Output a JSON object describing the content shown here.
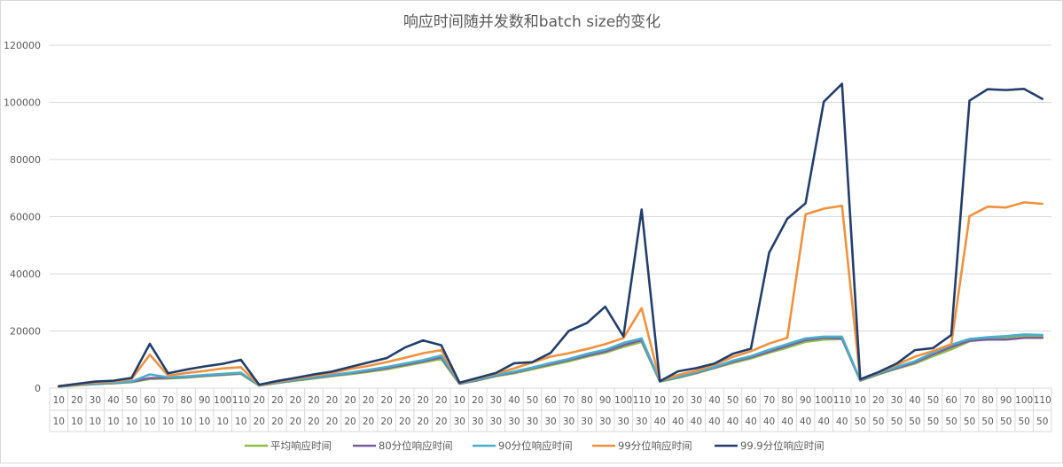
{
  "chart_data": {
    "type": "line",
    "title": "响应时间随并发数和batch size的变化",
    "xlabel": "",
    "ylabel": "",
    "ylim": [
      0,
      120000
    ],
    "yticks": [
      0,
      20000,
      40000,
      60000,
      80000,
      100000,
      120000
    ],
    "grid": true,
    "legend": "bottom",
    "x_concurrency": [
      "10",
      "20",
      "30",
      "40",
      "50",
      "60",
      "70",
      "80",
      "90",
      "100",
      "110",
      "20",
      "20",
      "20",
      "20",
      "20",
      "20",
      "20",
      "20",
      "20",
      "20",
      "20",
      "10",
      "20",
      "30",
      "40",
      "50",
      "60",
      "70",
      "80",
      "90",
      "100",
      "110",
      "10",
      "20",
      "30",
      "40",
      "50",
      "60",
      "70",
      "80",
      "90",
      "100",
      "110",
      "10",
      "20",
      "30",
      "40",
      "50",
      "60",
      "70",
      "80",
      "90",
      "100",
      "110"
    ],
    "x_batch": [
      "10",
      "10",
      "10",
      "10",
      "10",
      "10",
      "10",
      "10",
      "10",
      "10",
      "10",
      "20",
      "20",
      "20",
      "20",
      "20",
      "20",
      "20",
      "20",
      "20",
      "20",
      "20",
      "30",
      "30",
      "30",
      "30",
      "30",
      "30",
      "30",
      "30",
      "30",
      "30",
      "30",
      "40",
      "40",
      "40",
      "40",
      "40",
      "40",
      "40",
      "40",
      "40",
      "40",
      "40",
      "50",
      "50",
      "50",
      "50",
      "50",
      "50",
      "50",
      "50",
      "50",
      "50",
      "50"
    ],
    "series": [
      {
        "name": "平均响应时间",
        "color": "#8fbe44",
        "values": [
          500,
          1000,
          1400,
          1700,
          2100,
          3200,
          3400,
          3700,
          4200,
          4600,
          5000,
          900,
          1800,
          2600,
          3400,
          4200,
          4900,
          5700,
          6600,
          7800,
          9000,
          10200,
          1500,
          2700,
          4200,
          5200,
          6600,
          8000,
          9400,
          11000,
          12400,
          14400,
          16200,
          2300,
          3600,
          5200,
          7000,
          8800,
          10400,
          12400,
          14200,
          16200,
          17000,
          17200,
          2600,
          4800,
          6800,
          8600,
          11200,
          13600,
          16400,
          17200,
          17800,
          18400,
          18000
        ]
      },
      {
        "name": "80分位响应时间",
        "color": "#7c5ea0",
        "values": [
          550,
          1100,
          1500,
          1800,
          2200,
          3500,
          3600,
          3900,
          4400,
          4800,
          5200,
          950,
          1900,
          2800,
          3600,
          4400,
          5200,
          6000,
          7000,
          8200,
          9400,
          10800,
          1600,
          2800,
          4400,
          5500,
          7000,
          8400,
          9800,
          11400,
          12800,
          15000,
          16800,
          2400,
          3800,
          5400,
          7200,
          9200,
          10800,
          12800,
          14800,
          16800,
          17600,
          17400,
          2700,
          5000,
          7000,
          9000,
          11800,
          14400,
          16600,
          17000,
          17000,
          17600,
          17600
        ]
      },
      {
        "name": "90分位响应时间",
        "color": "#4aaecc",
        "values": [
          600,
          1150,
          1600,
          1900,
          2300,
          4800,
          3800,
          4100,
          4600,
          5000,
          5400,
          1000,
          2000,
          2900,
          3800,
          4600,
          5400,
          6400,
          7400,
          8600,
          9800,
          11400,
          1700,
          3000,
          4600,
          5800,
          7200,
          8800,
          10200,
          12000,
          13400,
          15800,
          17400,
          2500,
          3900,
          5600,
          7400,
          9600,
          11200,
          13400,
          15400,
          17400,
          18000,
          18000,
          2800,
          5200,
          7400,
          9400,
          12400,
          15200,
          17200,
          17800,
          18200,
          18800,
          18600
        ]
      },
      {
        "name": "99分位响应时间",
        "color": "#f0913d",
        "values": [
          650,
          1300,
          2000,
          2300,
          3200,
          11700,
          4400,
          5300,
          6000,
          6900,
          7300,
          1100,
          2200,
          3300,
          4400,
          5300,
          6700,
          7800,
          9100,
          10600,
          12200,
          13300,
          1800,
          3400,
          5100,
          6900,
          9000,
          11000,
          12200,
          13700,
          15400,
          17500,
          28000,
          2600,
          4600,
          6100,
          8200,
          10900,
          12900,
          15600,
          17600,
          60800,
          62800,
          63800,
          3000,
          5500,
          8200,
          11000,
          13000,
          15400,
          60200,
          63500,
          63200,
          65000,
          64500
        ]
      },
      {
        "name": "99.9分位响应时间",
        "color": "#233e6b",
        "values": [
          700,
          1500,
          2300,
          2600,
          3600,
          15500,
          5200,
          6500,
          7600,
          8500,
          9900,
          1200,
          2500,
          3600,
          4800,
          5800,
          7400,
          9000,
          10500,
          14200,
          16700,
          15000,
          1900,
          3600,
          5300,
          8700,
          9100,
          12300,
          20000,
          22800,
          28500,
          18100,
          62500,
          2400,
          5900,
          7000,
          8600,
          12000,
          13800,
          47400,
          59300,
          64700,
          100200,
          106500,
          3100,
          5600,
          8600,
          13300,
          14000,
          18600,
          100600,
          104600,
          104300,
          104700,
          101200
        ]
      }
    ]
  }
}
